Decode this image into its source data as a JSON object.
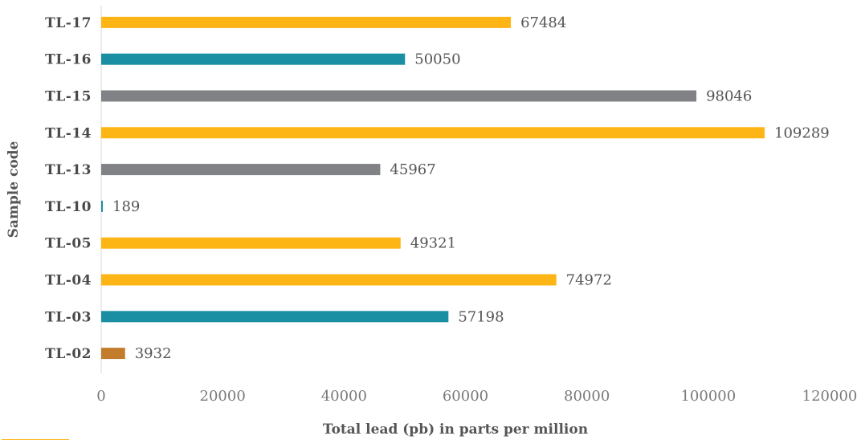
{
  "chart_data": {
    "type": "bar",
    "orientation": "horizontal",
    "categories": [
      "TL-17",
      "TL-16",
      "TL-15",
      "TL-14",
      "TL-13",
      "TL-10",
      "TL-05",
      "TL-04",
      "TL-03",
      "TL-02"
    ],
    "values": [
      67484,
      50050,
      98046,
      109289,
      45967,
      189,
      49321,
      74972,
      57198,
      3932
    ],
    "bar_colors": [
      "#FDB515",
      "#1A8FA3",
      "#808285",
      "#FDB515",
      "#808285",
      "#1A8FA3",
      "#FDB515",
      "#FDB515",
      "#1A8FA3",
      "#C27C2C"
    ],
    "xlabel": "Total lead (pb) in parts per million",
    "ylabel": "Sample code",
    "xlim": [
      0,
      120000
    ],
    "xticks": [
      "0",
      "20000",
      "40000",
      "60000",
      "80000",
      "100000",
      "120000"
    ],
    "data_labels": [
      "67484",
      "50050",
      "98046",
      "109289",
      "45967",
      "189",
      "49321",
      "74972",
      "57198",
      "3932"
    ],
    "grid": false,
    "legend": "none"
  },
  "caption_color": "#FDB515"
}
